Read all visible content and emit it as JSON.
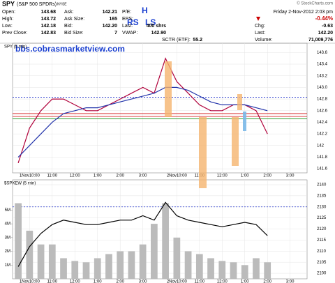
{
  "header": {
    "symbol": "SPY",
    "name": "(S&P 500 SPDRs)",
    "exchange": "NYSE",
    "credit": "© StockCharts.com",
    "left": [
      {
        "label": "Open:",
        "value": "143.68"
      },
      {
        "label": "High:",
        "value": "143.72"
      },
      {
        "label": "Low:",
        "value": "142.18"
      },
      {
        "label": "Prev Close:",
        "value": "142.83"
      }
    ],
    "mid": [
      {
        "label": "Ask:",
        "value": "142.21"
      },
      {
        "label": "Ask Size:",
        "value": "165"
      },
      {
        "label": "Bid:",
        "value": "142.20"
      },
      {
        "label": "Bid Size:",
        "value": "7"
      }
    ],
    "mid2": [
      {
        "label": "P/E:",
        "value": ""
      },
      {
        "label": "EPS:",
        "value": ""
      },
      {
        "label": "Last:",
        "value": "400 shrs"
      },
      {
        "label": "VWAP:",
        "value": "142.90"
      }
    ],
    "sctr": {
      "label": "SCTR (ETF):",
      "value": "55.2"
    },
    "date": "Friday  2-Nov-2012  2:03 pm",
    "change_pct": "-0.44%",
    "right": [
      {
        "label": "Chg:",
        "value": "-0.63"
      },
      {
        "label": "Last:",
        "value": "142.20"
      },
      {
        "label": "Volume:",
        "value": "71,009,776"
      }
    ],
    "annotations": [
      "H",
      "RS",
      "LS"
    ],
    "site": "bbs.cobrasmarketview.com"
  },
  "chart_data": [
    {
      "type": "line",
      "title": "SPY (5 min)",
      "categories": [
        null,
        "1Nov10:00",
        null,
        "11:00",
        null,
        "12:00",
        null,
        "1:00",
        null,
        "2:00",
        null,
        "3:00",
        null,
        null,
        "2Nov10:00",
        null,
        "11:00",
        null,
        "12:00",
        null,
        "1:00",
        null,
        "2:00",
        null,
        "3:00",
        null
      ],
      "series": [
        {
          "color": "#b0003a",
          "values": [
            141.7,
            142.3,
            142.6,
            142.8,
            142.8,
            142.7,
            142.6,
            142.6,
            142.7,
            142.8,
            142.9,
            143.0,
            142.9,
            143.5,
            143.1,
            142.9,
            142.7,
            142.6,
            142.6,
            142.7,
            142.7,
            142.6,
            142.2,
            null,
            null,
            null
          ]
        },
        {
          "color": "#2233aa",
          "values": [
            141.8,
            142.0,
            142.2,
            142.4,
            142.55,
            142.6,
            142.65,
            142.65,
            142.7,
            142.75,
            142.8,
            142.85,
            142.9,
            143.0,
            143.0,
            142.95,
            142.85,
            142.75,
            142.7,
            142.7,
            142.7,
            142.65,
            142.6,
            null,
            null,
            null
          ]
        }
      ],
      "hlines": [
        {
          "value": 142.83,
          "color": "#2233cc",
          "dash": true
        },
        {
          "value": 142.55,
          "color": "#d01010",
          "dash": false
        },
        {
          "value": 142.5,
          "color": "#d01010",
          "dash": false
        },
        {
          "value": 142.46,
          "color": "#109010",
          "dash": false
        }
      ],
      "ylim": [
        141.53,
        143.76
      ],
      "yticks": [
        141.6,
        141.8,
        142.0,
        142.2,
        142.4,
        142.6,
        142.8,
        {
          "value": 143.0,
          "label": "143.0"
        },
        143.2,
        143.4,
        143.6
      ],
      "grid": true
    },
    {
      "type": "line",
      "title": "$SPXEW (5 min)",
      "categories": [
        null,
        "1Nov10:00",
        null,
        "11:00",
        null,
        "12:00",
        null,
        "1:00",
        null,
        "2:00",
        null,
        "3:00",
        null,
        null,
        "2Nov10:00",
        null,
        "11:00",
        null,
        "12:00",
        null,
        "1:00",
        null,
        "2:00",
        null,
        "3:00",
        null
      ],
      "series": [
        {
          "color": "#bbbbbb",
          "kind": "bar",
          "axis": "y2",
          "values": [
            5500000,
            3500000,
            2500000,
            2500000,
            1500000,
            1300000,
            1200000,
            1500000,
            1800000,
            2000000,
            2000000,
            2500000,
            4000000,
            5500000,
            3000000,
            2000000,
            1800000,
            1500000,
            1300000,
            1200000,
            1000000,
            1500000,
            1200000,
            null,
            null,
            null
          ]
        },
        {
          "color": "#000000",
          "values": [
            2103,
            2112,
            2118,
            2122,
            2124,
            2123,
            2122,
            2122,
            2123,
            2124,
            2124,
            2126,
            2124,
            2132,
            2126,
            2124,
            2123,
            2122,
            2121,
            2122,
            2123,
            2122,
            2117,
            null,
            null,
            null
          ]
        }
      ],
      "hlines": [
        {
          "value": 2130,
          "color": "#2233cc",
          "dash": true
        }
      ],
      "ylim": [
        2097.5,
        2142.2
      ],
      "yticks": [
        2100,
        2105,
        2110,
        2115,
        2120,
        2125,
        2130,
        2135,
        2140
      ],
      "y2lim": [
        0,
        7200000
      ],
      "y2ticks": [
        {
          "value": 1000000,
          "label": "1M"
        },
        {
          "value": 2000000,
          "label": "2M"
        },
        {
          "value": 3000000,
          "label": "3M"
        },
        {
          "value": 4000000,
          "label": "4M"
        },
        {
          "value": 5000000,
          "label": "5M"
        }
      ],
      "grid": true
    }
  ]
}
